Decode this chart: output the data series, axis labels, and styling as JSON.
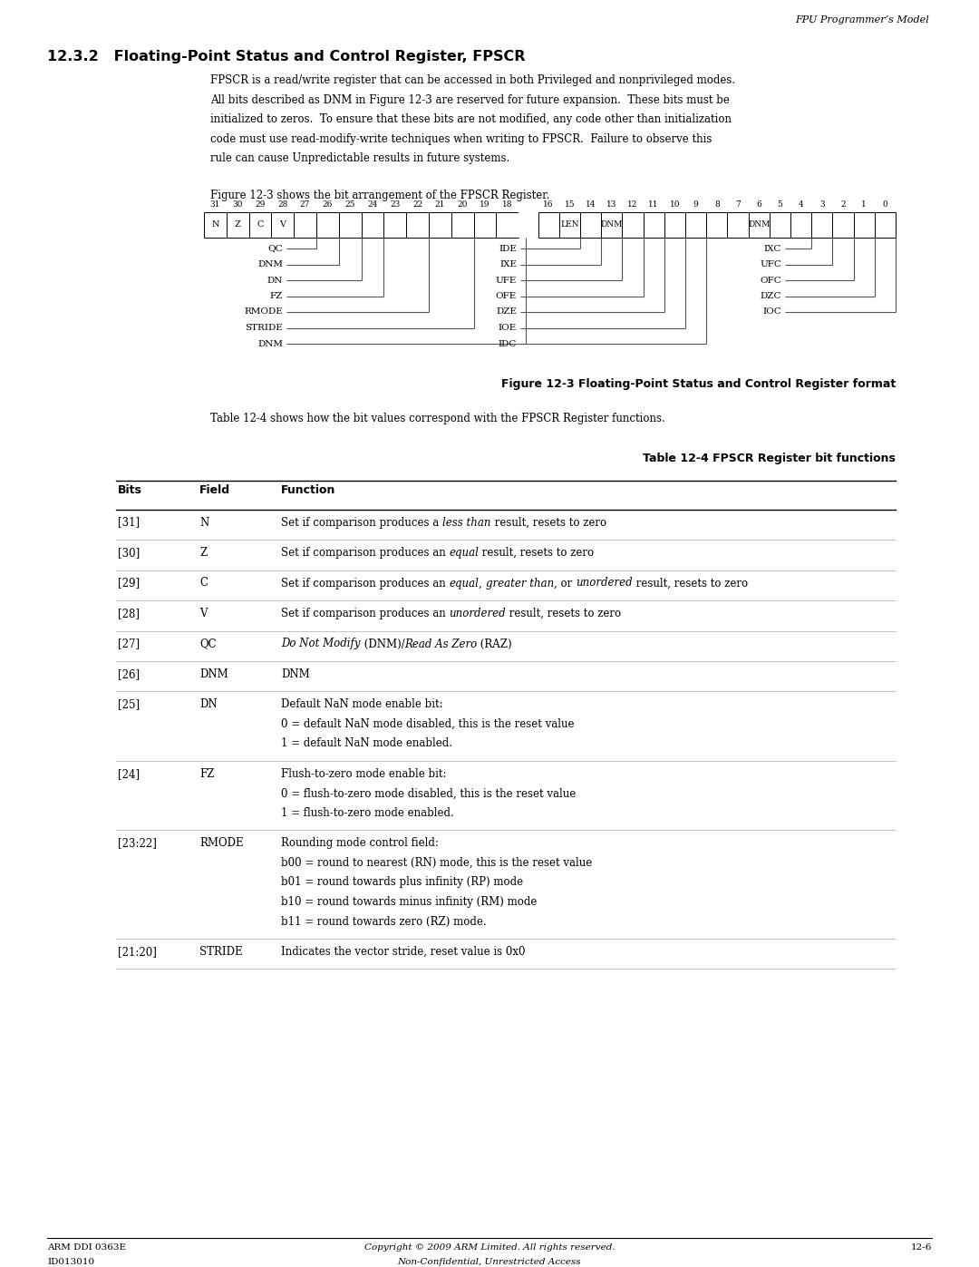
{
  "page_header": "FPU Programmer’s Model",
  "section_title": "12.3.2   Floating-Point Status and Control Register, FPSCR",
  "body_text": [
    "FPSCR is a read/write register that can be accessed in both Privileged and nonprivileged modes.",
    "All bits described as DNM in Figure 12-3 are reserved for future expansion.  These bits must be",
    "initialized to zeros.  To ensure that these bits are not modified, any code other than initialization",
    "code must use read-modify-write techniques when writing to FPSCR.  Failure to observe this",
    "rule can cause Unpredictable results in future systems."
  ],
  "figure_ref": "Figure 12-3 shows the bit arrangement of the FPSCR Register.",
  "figure_caption": "Figure 12-3 Floating-Point Status and Control Register format",
  "table_caption": "Table 12-4 FPSCR Register bit functions",
  "table_intro": "Table 12-4 shows how the bit values correspond with the FPSCR Register functions.",
  "table_rows": [
    {
      "bits": "[31]",
      "field": "N",
      "function": [
        [
          [
            "Set if comparison produces a ",
            false
          ],
          [
            "less than",
            true
          ],
          [
            " result, resets to zero",
            false
          ]
        ]
      ]
    },
    {
      "bits": "[30]",
      "field": "Z",
      "function": [
        [
          [
            "Set if comparison produces an ",
            false
          ],
          [
            "equal",
            true
          ],
          [
            " result, resets to zero",
            false
          ]
        ]
      ]
    },
    {
      "bits": "[29]",
      "field": "C",
      "function": [
        [
          [
            "Set if comparison produces an ",
            false
          ],
          [
            "equal",
            true
          ],
          [
            ", ",
            false
          ],
          [
            "greater than",
            true
          ],
          [
            ", or ",
            false
          ],
          [
            "unordered",
            true
          ],
          [
            " result, resets to zero",
            false
          ]
        ]
      ]
    },
    {
      "bits": "[28]",
      "field": "V",
      "function": [
        [
          [
            "Set if comparison produces an ",
            false
          ],
          [
            "unordered",
            true
          ],
          [
            " result, resets to zero",
            false
          ]
        ]
      ]
    },
    {
      "bits": "[27]",
      "field": "QC",
      "function": [
        [
          [
            "Do Not Modify",
            true
          ],
          [
            " (DNM)/",
            false
          ],
          [
            "Read As Zero",
            true
          ],
          [
            " (RAZ)",
            false
          ]
        ]
      ]
    },
    {
      "bits": "[26]",
      "field": "DNM",
      "function": [
        [
          [
            "DNM",
            false
          ]
        ]
      ]
    },
    {
      "bits": "[25]",
      "field": "DN",
      "function": [
        [
          [
            "Default NaN mode enable bit:",
            false
          ]
        ],
        [
          [
            "0 = default NaN mode disabled, this is the reset value",
            false
          ]
        ],
        [
          [
            "1 = default NaN mode enabled.",
            false
          ]
        ]
      ]
    },
    {
      "bits": "[24]",
      "field": "FZ",
      "function": [
        [
          [
            "Flush-to-zero mode enable bit:",
            false
          ]
        ],
        [
          [
            "0 = flush-to-zero mode disabled, this is the reset value",
            false
          ]
        ],
        [
          [
            "1 = flush-to-zero mode enabled.",
            false
          ]
        ]
      ]
    },
    {
      "bits": "[23:22]",
      "field": "RMODE",
      "function": [
        [
          [
            "Rounding mode control field:",
            false
          ]
        ],
        [
          [
            "b00 = round to nearest (RN) mode, this is the reset value",
            false
          ]
        ],
        [
          [
            "b01 = round towards plus infinity (RP) mode",
            false
          ]
        ],
        [
          [
            "b10 = round towards minus infinity (RM) mode",
            false
          ]
        ],
        [
          [
            "b11 = round towards zero (RZ) mode.",
            false
          ]
        ]
      ]
    },
    {
      "bits": "[21:20]",
      "field": "STRIDE",
      "function": [
        [
          [
            "Indicates the vector stride, reset value is 0x0",
            false
          ]
        ]
      ]
    }
  ],
  "footer_left1": "ARM DDI 0363E",
  "footer_left2": "ID013010",
  "footer_center1": "Copyright © 2009 ARM Limited. All rights reserved.",
  "footer_center2": "Non-Confidential, Unrestricted Access",
  "footer_right": "12-6"
}
